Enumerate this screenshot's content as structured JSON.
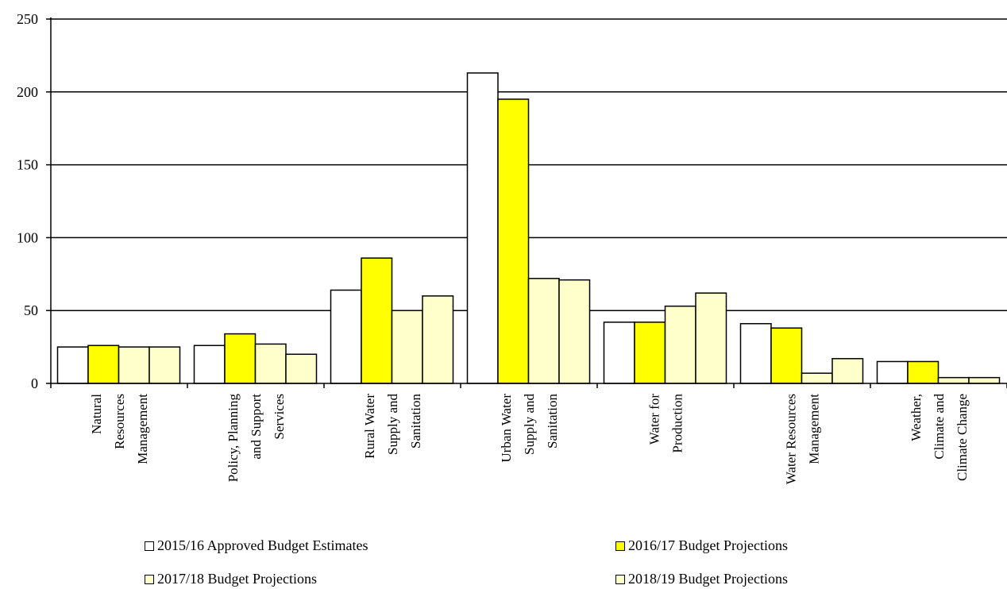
{
  "chart_data": {
    "type": "bar",
    "title": "",
    "xlabel": "",
    "ylabel": "",
    "ylim": [
      0,
      250
    ],
    "yticks": [
      0,
      50,
      100,
      150,
      200,
      250
    ],
    "grid": true,
    "legend_position": "bottom",
    "categories": [
      [
        "Natural",
        "Resources",
        "Management"
      ],
      [
        "Policy, Planning",
        "and Support",
        "Services"
      ],
      [
        "Rural Water",
        "Supply and",
        "Sanitation"
      ],
      [
        "Urban Water",
        "Supply and",
        "Sanitation"
      ],
      [
        "Water for",
        "Production"
      ],
      [
        "Water Resources",
        "Management"
      ],
      [
        "Weather,",
        "Climate and",
        "Climate Change"
      ]
    ],
    "series": [
      {
        "name": "2015/16 Approved Budget Estimates",
        "color": "#ffffff",
        "values": [
          25,
          26,
          64,
          213,
          42,
          41,
          15
        ]
      },
      {
        "name": "2016/17 Budget Projections",
        "color": "#ffff00",
        "values": [
          26,
          34,
          86,
          195,
          42,
          38,
          15
        ]
      },
      {
        "name": "2017/18 Budget Projections",
        "color": "#ffffcc",
        "values": [
          25,
          27,
          50,
          72,
          53,
          7,
          4
        ]
      },
      {
        "name": "2018/19 Budget Projections",
        "color": "#ffffcc",
        "values": [
          25,
          20,
          60,
          71,
          62,
          17,
          4
        ]
      }
    ]
  }
}
